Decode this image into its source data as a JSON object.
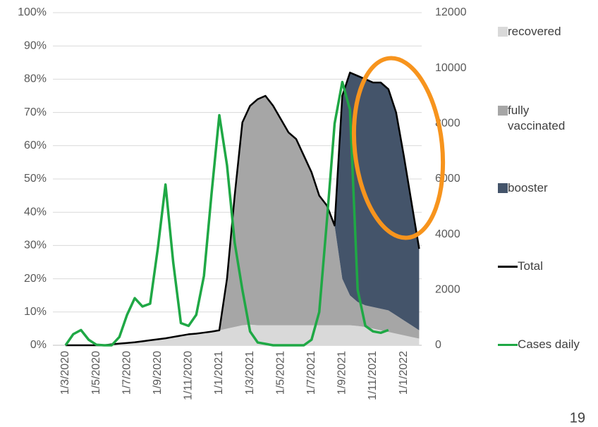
{
  "chart_data": {
    "type": "area",
    "categories": [
      "1/3/2020",
      null,
      null,
      null,
      "1/5/2020",
      null,
      null,
      null,
      "1/7/2020",
      null,
      null,
      null,
      "1/9/2020",
      null,
      null,
      null,
      "1/11/2020",
      null,
      null,
      null,
      "1/1/2021",
      null,
      null,
      null,
      "1/3/2021",
      null,
      null,
      null,
      "1/5/2021",
      null,
      null,
      null,
      "1/7/2021",
      null,
      null,
      null,
      "1/9/2021",
      null,
      null,
      null,
      "1/11/2021",
      null,
      null,
      null,
      "1/1/2022",
      null,
      null
    ],
    "series": [
      {
        "name": "recovered",
        "type": "area",
        "color": "#d9d9d9",
        "values": [
          0,
          0,
          0,
          0,
          0,
          0,
          0.3,
          0.5,
          0.7,
          0.9,
          1.2,
          1.5,
          1.8,
          2.1,
          2.5,
          2.9,
          3.3,
          3.5,
          3.8,
          4.1,
          4.5,
          5,
          5.5,
          6,
          6.2,
          6,
          6,
          6,
          6,
          6,
          6,
          6,
          6,
          6,
          6,
          6,
          6,
          6,
          5.8,
          5.5,
          5,
          4.5,
          4,
          3.5,
          3,
          2.5,
          2
        ]
      },
      {
        "name": "fully vaccinated",
        "type": "area",
        "color": "#a6a6a6",
        "values": [
          0,
          0,
          0,
          0,
          0,
          0,
          0,
          0,
          0,
          0,
          0,
          0,
          0,
          0,
          0,
          0,
          0,
          0,
          0,
          0,
          0,
          15,
          39.5,
          61,
          65.8,
          68,
          69,
          66,
          62,
          58,
          56,
          51,
          46,
          39,
          36,
          30,
          14,
          9,
          7.2,
          6.5,
          6.5,
          6.5,
          6.5,
          5.5,
          4.5,
          3.5,
          2.5
        ]
      },
      {
        "name": "booster",
        "type": "area",
        "color": "#44546a",
        "values": [
          0,
          0,
          0,
          0,
          0,
          0,
          0,
          0,
          0,
          0,
          0,
          0,
          0,
          0,
          0,
          0,
          0,
          0,
          0,
          0,
          0,
          0,
          0,
          0,
          0,
          0,
          0,
          0,
          0,
          0,
          0,
          0,
          0,
          0,
          0,
          0,
          55,
          67,
          68,
          68,
          67.5,
          68,
          66.5,
          61,
          49.5,
          37,
          24.5
        ]
      },
      {
        "name": "Total",
        "type": "line",
        "color": "#000000",
        "values": [
          0,
          0,
          0,
          0,
          0,
          0,
          0.3,
          0.5,
          0.7,
          0.9,
          1.2,
          1.5,
          1.8,
          2.1,
          2.5,
          2.9,
          3.3,
          3.5,
          3.8,
          4.1,
          4.5,
          20,
          45,
          67,
          72,
          74,
          75,
          72,
          68,
          64,
          62,
          57,
          52,
          45,
          42,
          36,
          75,
          82,
          81,
          80,
          79,
          79,
          77,
          70,
          57,
          43,
          29
        ]
      },
      {
        "name": "Cases daily",
        "type": "line",
        "axis": "y2",
        "color": "#1fa845",
        "values": [
          0,
          400,
          550,
          200,
          20,
          0,
          0,
          300,
          1100,
          1700,
          1400,
          1500,
          3500,
          5800,
          3000,
          800,
          700,
          1100,
          2500,
          5500,
          8300,
          6500,
          3700,
          2000,
          500,
          100,
          50,
          0,
          0,
          0,
          0,
          0,
          200,
          1200,
          4500,
          8000,
          9500,
          8500,
          2000,
          700,
          500,
          450,
          550,
          null,
          null,
          null,
          null
        ]
      }
    ],
    "ylim": [
      0,
      100
    ],
    "yticks": [
      {
        "value": 0,
        "label": "0%"
      },
      {
        "value": 10,
        "label": "10%"
      },
      {
        "value": 20,
        "label": "20%"
      },
      {
        "value": 30,
        "label": "30%"
      },
      {
        "value": 40,
        "label": "40%"
      },
      {
        "value": 50,
        "label": "50%"
      },
      {
        "value": 60,
        "label": "60%"
      },
      {
        "value": 70,
        "label": "70%"
      },
      {
        "value": 80,
        "label": "80%"
      },
      {
        "value": 90,
        "label": "90%"
      },
      {
        "value": 100,
        "label": "100%"
      }
    ],
    "y2lim": [
      0,
      12000
    ],
    "y2ticks": [
      0,
      2000,
      4000,
      6000,
      8000,
      10000,
      12000
    ],
    "grid": true
  },
  "slide_number": "19"
}
